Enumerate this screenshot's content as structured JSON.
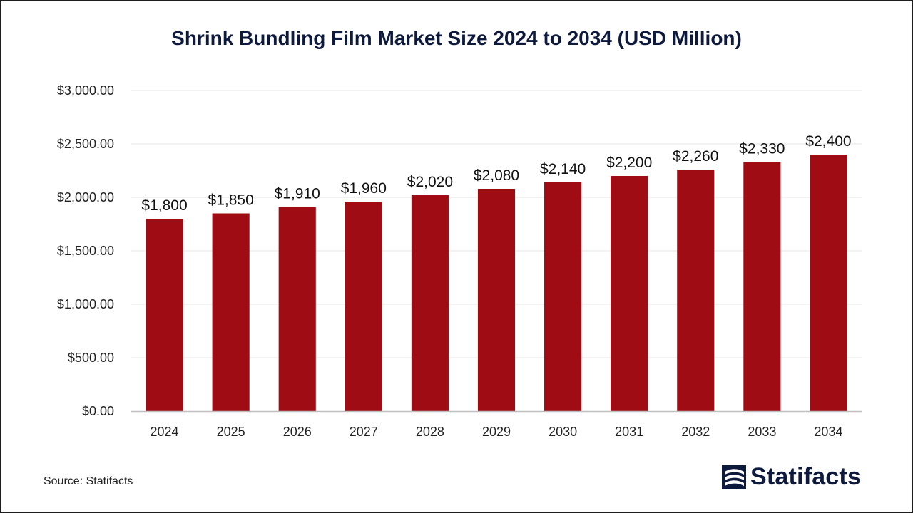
{
  "chart_data": {
    "type": "bar",
    "title": "Shrink Bundling Film Market Size 2024 to 2034 (USD Million)",
    "categories": [
      "2024",
      "2025",
      "2026",
      "2027",
      "2028",
      "2029",
      "2030",
      "2031",
      "2032",
      "2033",
      "2034"
    ],
    "values": [
      1800,
      1850,
      1910,
      1960,
      2020,
      2080,
      2140,
      2200,
      2260,
      2330,
      2400
    ],
    "data_labels": [
      "$1,800",
      "$1,850",
      "$1,910",
      "$1,960",
      "$2,020",
      "$2,080",
      "$2,140",
      "$2,200",
      "$2,260",
      "$2,330",
      "$2,400"
    ],
    "yticks": [
      0,
      500,
      1000,
      1500,
      2000,
      2500,
      3000
    ],
    "ytick_labels": [
      "$0.00",
      "$500.00",
      "$1,000.00",
      "$1,500.00",
      "$2,000.00",
      "$2,500.00",
      "$3,000.00"
    ],
    "ylim": [
      0,
      3000
    ],
    "xlabel": "",
    "ylabel": "",
    "grid": true,
    "legend": "none",
    "bar_color": "#a00c13"
  },
  "footer": {
    "source": "Source: Statifacts",
    "brand": "Statifacts",
    "brand_icon": "statifacts-logo-icon"
  },
  "colors": {
    "title": "#0e1a3d",
    "grid": "#e6e6e6",
    "axis": "#bfbfbf"
  }
}
